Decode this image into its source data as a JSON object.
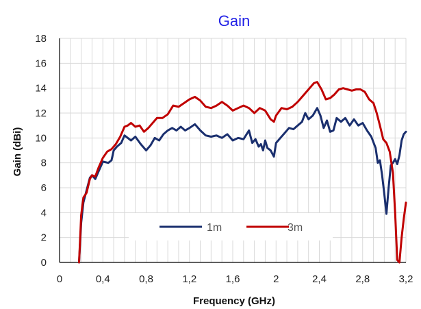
{
  "chart_data": {
    "type": "line",
    "title": "Gain",
    "title_color": "#1f1fe6",
    "xlabel": "Frequency  (GHz)",
    "ylabel": "Gain  (dBi)",
    "xlim": [
      0,
      3.2
    ],
    "ylim": [
      0,
      18
    ],
    "x_ticks": [
      0,
      0.4,
      0.8,
      1.2,
      1.6,
      2,
      2.4,
      2.8,
      3.2
    ],
    "x_tick_labels": [
      "0",
      "0,4",
      "0,8",
      "1,2",
      "1,6",
      "2",
      "2,4",
      "2,8",
      "3,2"
    ],
    "y_ticks": [
      0,
      2,
      4,
      6,
      8,
      10,
      12,
      14,
      16,
      18
    ],
    "y_tick_labels": [
      "0",
      "2",
      "4",
      "6",
      "8",
      "10",
      "12",
      "14",
      "16",
      "18"
    ],
    "grid": true,
    "legend_position": "bottom-center",
    "series": [
      {
        "name": "1m",
        "color": "#1a2f6e",
        "points": [
          [
            0.18,
            0
          ],
          [
            0.2,
            3.2
          ],
          [
            0.22,
            4.8
          ],
          [
            0.25,
            5.8
          ],
          [
            0.28,
            6.8
          ],
          [
            0.3,
            7.0
          ],
          [
            0.33,
            6.7
          ],
          [
            0.36,
            7.3
          ],
          [
            0.4,
            8.1
          ],
          [
            0.45,
            8.0
          ],
          [
            0.48,
            8.2
          ],
          [
            0.5,
            9.0
          ],
          [
            0.53,
            9.3
          ],
          [
            0.57,
            9.6
          ],
          [
            0.6,
            10.2
          ],
          [
            0.63,
            10.0
          ],
          [
            0.66,
            9.8
          ],
          [
            0.7,
            10.1
          ],
          [
            0.75,
            9.5
          ],
          [
            0.8,
            9.0
          ],
          [
            0.84,
            9.4
          ],
          [
            0.88,
            10.0
          ],
          [
            0.92,
            9.8
          ],
          [
            0.96,
            10.3
          ],
          [
            1.0,
            10.6
          ],
          [
            1.04,
            10.8
          ],
          [
            1.08,
            10.6
          ],
          [
            1.12,
            10.9
          ],
          [
            1.16,
            10.6
          ],
          [
            1.2,
            10.8
          ],
          [
            1.25,
            11.1
          ],
          [
            1.3,
            10.6
          ],
          [
            1.35,
            10.2
          ],
          [
            1.4,
            10.1
          ],
          [
            1.45,
            10.2
          ],
          [
            1.5,
            10.0
          ],
          [
            1.55,
            10.3
          ],
          [
            1.6,
            9.8
          ],
          [
            1.65,
            10.0
          ],
          [
            1.7,
            9.9
          ],
          [
            1.75,
            10.6
          ],
          [
            1.78,
            9.6
          ],
          [
            1.81,
            9.9
          ],
          [
            1.84,
            9.3
          ],
          [
            1.86,
            9.5
          ],
          [
            1.88,
            9.0
          ],
          [
            1.9,
            9.8
          ],
          [
            1.92,
            9.2
          ],
          [
            1.95,
            9.0
          ],
          [
            1.98,
            8.5
          ],
          [
            2.0,
            9.6
          ],
          [
            2.04,
            10.0
          ],
          [
            2.08,
            10.4
          ],
          [
            2.12,
            10.8
          ],
          [
            2.16,
            10.7
          ],
          [
            2.2,
            11.0
          ],
          [
            2.24,
            11.3
          ],
          [
            2.27,
            12.0
          ],
          [
            2.3,
            11.5
          ],
          [
            2.34,
            11.8
          ],
          [
            2.38,
            12.4
          ],
          [
            2.41,
            11.8
          ],
          [
            2.44,
            10.8
          ],
          [
            2.47,
            11.4
          ],
          [
            2.5,
            10.5
          ],
          [
            2.53,
            10.6
          ],
          [
            2.56,
            11.6
          ],
          [
            2.6,
            11.3
          ],
          [
            2.64,
            11.6
          ],
          [
            2.68,
            11.0
          ],
          [
            2.72,
            11.5
          ],
          [
            2.76,
            11.0
          ],
          [
            2.8,
            11.2
          ],
          [
            2.84,
            10.6
          ],
          [
            2.88,
            10.1
          ],
          [
            2.92,
            9.2
          ],
          [
            2.94,
            8.0
          ],
          [
            2.96,
            8.2
          ],
          [
            2.98,
            7.0
          ],
          [
            3.0,
            5.5
          ],
          [
            3.02,
            3.9
          ],
          [
            3.04,
            6.0
          ],
          [
            3.06,
            7.8
          ],
          [
            3.08,
            8.0
          ],
          [
            3.1,
            8.3
          ],
          [
            3.12,
            7.9
          ],
          [
            3.14,
            8.6
          ],
          [
            3.16,
            9.8
          ],
          [
            3.18,
            10.3
          ],
          [
            3.2,
            10.5
          ]
        ]
      },
      {
        "name": "3m",
        "color": "#c00000",
        "points": [
          [
            0.18,
            0
          ],
          [
            0.2,
            3.8
          ],
          [
            0.22,
            5.2
          ],
          [
            0.25,
            5.6
          ],
          [
            0.28,
            6.7
          ],
          [
            0.3,
            7.0
          ],
          [
            0.33,
            6.9
          ],
          [
            0.36,
            7.6
          ],
          [
            0.4,
            8.4
          ],
          [
            0.44,
            8.9
          ],
          [
            0.48,
            9.1
          ],
          [
            0.52,
            9.5
          ],
          [
            0.56,
            10.1
          ],
          [
            0.6,
            10.9
          ],
          [
            0.63,
            11.0
          ],
          [
            0.66,
            11.2
          ],
          [
            0.7,
            10.9
          ],
          [
            0.74,
            11.0
          ],
          [
            0.78,
            10.5
          ],
          [
            0.82,
            10.8
          ],
          [
            0.86,
            11.2
          ],
          [
            0.9,
            11.6
          ],
          [
            0.95,
            11.6
          ],
          [
            1.0,
            11.9
          ],
          [
            1.05,
            12.6
          ],
          [
            1.1,
            12.5
          ],
          [
            1.15,
            12.8
          ],
          [
            1.2,
            13.1
          ],
          [
            1.25,
            13.3
          ],
          [
            1.3,
            13.0
          ],
          [
            1.35,
            12.5
          ],
          [
            1.4,
            12.4
          ],
          [
            1.45,
            12.6
          ],
          [
            1.5,
            12.9
          ],
          [
            1.55,
            12.6
          ],
          [
            1.6,
            12.2
          ],
          [
            1.65,
            12.4
          ],
          [
            1.7,
            12.6
          ],
          [
            1.75,
            12.4
          ],
          [
            1.8,
            12.0
          ],
          [
            1.85,
            12.4
          ],
          [
            1.9,
            12.2
          ],
          [
            1.95,
            11.5
          ],
          [
            1.98,
            11.3
          ],
          [
            2.0,
            11.8
          ],
          [
            2.05,
            12.4
          ],
          [
            2.1,
            12.3
          ],
          [
            2.15,
            12.5
          ],
          [
            2.2,
            12.9
          ],
          [
            2.25,
            13.4
          ],
          [
            2.3,
            13.9
          ],
          [
            2.35,
            14.4
          ],
          [
            2.38,
            14.5
          ],
          [
            2.42,
            13.9
          ],
          [
            2.46,
            13.1
          ],
          [
            2.5,
            13.2
          ],
          [
            2.54,
            13.5
          ],
          [
            2.58,
            13.9
          ],
          [
            2.62,
            14.0
          ],
          [
            2.66,
            13.9
          ],
          [
            2.7,
            13.8
          ],
          [
            2.74,
            13.9
          ],
          [
            2.78,
            13.9
          ],
          [
            2.82,
            13.7
          ],
          [
            2.86,
            13.1
          ],
          [
            2.9,
            12.8
          ],
          [
            2.93,
            12.0
          ],
          [
            2.96,
            11.0
          ],
          [
            2.99,
            9.9
          ],
          [
            3.02,
            9.6
          ],
          [
            3.05,
            8.9
          ],
          [
            3.08,
            7.2
          ],
          [
            3.1,
            4.0
          ],
          [
            3.12,
            0.2
          ],
          [
            3.14,
            0
          ],
          [
            3.16,
            2.0
          ],
          [
            3.18,
            3.5
          ],
          [
            3.2,
            4.8
          ]
        ]
      }
    ]
  }
}
